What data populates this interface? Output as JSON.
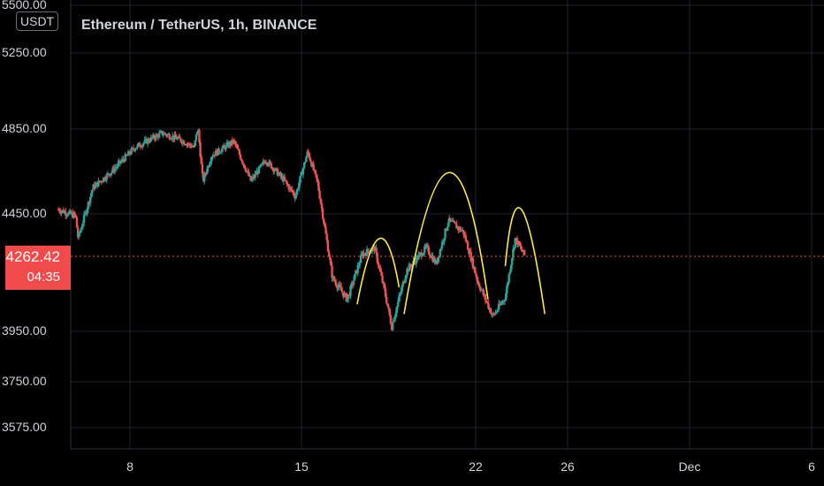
{
  "header": {
    "title": "Ethereum / TetherUS, 1h, BINANCE",
    "unit_badge": "USDT"
  },
  "price_label": {
    "price": "4262.42",
    "countdown": "04:35",
    "color": "#f04a4a"
  },
  "colors": {
    "up": "#26a69a",
    "down": "#ef5350",
    "pattern": "#ffeb3b",
    "grid": "#1e222d",
    "background": "#000000"
  },
  "chart_data": {
    "type": "candlestick",
    "title": "Ethereum / TetherUS, 1h, BINANCE",
    "y_axis": {
      "scale": "log",
      "ticks": [
        "5500.00",
        "5250.00",
        "4850.00",
        "4450.00",
        "3950.00",
        "3750.00",
        "3575.00"
      ],
      "range": [
        3500,
        5600
      ]
    },
    "x_axis": {
      "ticks": [
        "8",
        "15",
        "22",
        "26",
        "Dec",
        "6"
      ]
    },
    "last_price": 4262.42,
    "price_path": [
      {
        "day": 5.1,
        "price": 4470
      },
      {
        "day": 5.8,
        "price": 4440
      },
      {
        "day": 5.9,
        "price": 4340
      },
      {
        "day": 6.5,
        "price": 4570
      },
      {
        "day": 7.3,
        "price": 4650
      },
      {
        "day": 8.2,
        "price": 4760
      },
      {
        "day": 9.3,
        "price": 4830
      },
      {
        "day": 10.0,
        "price": 4800
      },
      {
        "day": 10.6,
        "price": 4760
      },
      {
        "day": 10.75,
        "price": 4860
      },
      {
        "day": 10.95,
        "price": 4600
      },
      {
        "day": 11.3,
        "price": 4720
      },
      {
        "day": 12.2,
        "price": 4790
      },
      {
        "day": 12.9,
        "price": 4600
      },
      {
        "day": 13.5,
        "price": 4700
      },
      {
        "day": 14.2,
        "price": 4610
      },
      {
        "day": 14.7,
        "price": 4530
      },
      {
        "day": 15.2,
        "price": 4740
      },
      {
        "day": 15.6,
        "price": 4590
      },
      {
        "day": 16.2,
        "price": 4170
      },
      {
        "day": 16.8,
        "price": 4080
      },
      {
        "day": 17.4,
        "price": 4270
      },
      {
        "day": 17.9,
        "price": 4300
      },
      {
        "day": 18.3,
        "price": 4120
      },
      {
        "day": 18.6,
        "price": 3970
      },
      {
        "day": 19.2,
        "price": 4200
      },
      {
        "day": 20.0,
        "price": 4300
      },
      {
        "day": 20.4,
        "price": 4230
      },
      {
        "day": 20.9,
        "price": 4420
      },
      {
        "day": 21.5,
        "price": 4370
      },
      {
        "day": 22.1,
        "price": 4150
      },
      {
        "day": 22.7,
        "price": 4010
      },
      {
        "day": 23.2,
        "price": 4090
      },
      {
        "day": 23.6,
        "price": 4340
      },
      {
        "day": 24.0,
        "price": 4262
      }
    ],
    "annotations": [
      {
        "type": "arc",
        "color": "#ffeb3b",
        "points": [
          [
            17.2,
            4060
          ],
          [
            18.1,
            4340
          ],
          [
            18.9,
            4130
          ]
        ]
      },
      {
        "type": "arc",
        "color": "#ffeb3b",
        "points": [
          [
            19.1,
            4020
          ],
          [
            20.9,
            4640
          ],
          [
            22.5,
            4080
          ]
        ]
      },
      {
        "type": "arc",
        "color": "#ffeb3b",
        "points": [
          [
            23.2,
            4220
          ],
          [
            23.85,
            4470
          ],
          [
            24.8,
            4020
          ]
        ]
      }
    ]
  }
}
